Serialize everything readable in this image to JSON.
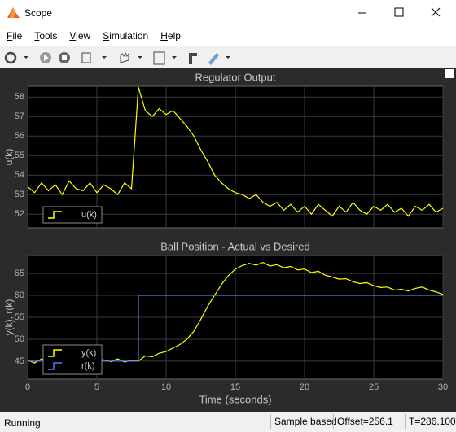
{
  "window": {
    "title": "Scope"
  },
  "menu": [
    "File",
    "Tools",
    "View",
    "Simulation",
    "Help"
  ],
  "chart_data": [
    {
      "type": "line",
      "title": "Regulator Output",
      "ylabel": "u(k)",
      "xlim": [
        0,
        30
      ],
      "ylim": [
        51.3,
        58.55
      ],
      "xticks": [
        0,
        5,
        10,
        15,
        20,
        25,
        30
      ],
      "yticks": [
        52,
        53,
        54,
        55,
        56,
        57,
        58
      ],
      "grid": true,
      "legend": "lower left",
      "series": [
        {
          "name": "u(k)",
          "color": "#ffff00",
          "x": [
            0,
            0.5,
            1,
            1.5,
            2,
            2.5,
            3,
            3.5,
            4,
            4.5,
            5,
            5.5,
            6,
            6.5,
            7,
            7.5,
            8,
            8.5,
            9,
            9.5,
            10,
            10.5,
            11,
            11.5,
            12,
            12.5,
            13,
            13.5,
            14,
            14.5,
            15,
            15.5,
            16,
            16.5,
            17,
            17.5,
            18,
            18.5,
            19,
            19.5,
            20,
            20.5,
            21,
            21.5,
            22,
            22.5,
            23,
            23.5,
            24,
            24.5,
            25,
            25.5,
            26,
            26.5,
            27,
            27.5,
            28,
            28.5,
            29,
            29.5,
            30
          ],
          "values": [
            53.4,
            53.1,
            53.6,
            53.2,
            53.5,
            53.0,
            53.7,
            53.3,
            53.2,
            53.6,
            53.1,
            53.5,
            53.3,
            53.0,
            53.6,
            53.3,
            58.5,
            57.3,
            57.0,
            57.4,
            57.1,
            57.3,
            56.9,
            56.5,
            56.0,
            55.3,
            54.7,
            54.0,
            53.6,
            53.3,
            53.1,
            53.0,
            52.8,
            53.0,
            52.6,
            52.4,
            52.6,
            52.2,
            52.5,
            52.1,
            52.4,
            52.0,
            52.5,
            52.2,
            51.9,
            52.4,
            52.1,
            52.6,
            52.2,
            52.0,
            52.4,
            52.2,
            52.5,
            52.1,
            52.3,
            51.9,
            52.4,
            52.2,
            52.5,
            52.1,
            52.3
          ]
        }
      ]
    },
    {
      "type": "line",
      "title": "Ball Position - Actual vs Desired",
      "ylabel": "y(k), r(k)",
      "xlabel": "Time (seconds)",
      "xlim": [
        0,
        30
      ],
      "ylim": [
        40.9,
        69.1
      ],
      "xticks": [
        0,
        5,
        10,
        15,
        20,
        25,
        30
      ],
      "yticks": [
        45,
        50,
        55,
        60,
        65
      ],
      "grid": true,
      "legend": "lower left",
      "series": [
        {
          "name": "y(k)",
          "color": "#ffff00",
          "x": [
            0,
            0.5,
            1,
            1.5,
            2,
            2.5,
            3,
            3.5,
            4,
            4.5,
            5,
            5.5,
            6,
            6.5,
            7,
            7.5,
            8,
            8.5,
            9,
            9.5,
            10,
            10.5,
            11,
            11.5,
            12,
            12.5,
            13,
            13.5,
            14,
            14.5,
            15,
            15.5,
            16,
            16.5,
            17,
            17.5,
            18,
            18.5,
            19,
            19.5,
            20,
            20.5,
            21,
            21.5,
            22,
            22.5,
            23,
            23.5,
            24,
            24.5,
            25,
            25.5,
            26,
            26.5,
            27,
            27.5,
            28,
            28.5,
            29,
            29.5,
            30
          ],
          "values": [
            45.2,
            44.6,
            45.5,
            44.8,
            45.3,
            44.5,
            45.6,
            44.9,
            45.1,
            45.4,
            44.7,
            45.3,
            44.9,
            45.5,
            44.8,
            45.2,
            45.0,
            46.2,
            46.0,
            46.8,
            47.2,
            48.0,
            48.8,
            50.0,
            51.8,
            54.5,
            57.5,
            60.0,
            62.5,
            64.5,
            66.0,
            66.8,
            67.3,
            66.9,
            67.5,
            66.7,
            67.0,
            66.3,
            66.6,
            65.8,
            66.0,
            65.2,
            65.5,
            64.6,
            64.2,
            63.7,
            63.8,
            63.1,
            62.7,
            62.9,
            62.2,
            61.8,
            61.9,
            61.2,
            61.4,
            61.0,
            61.6,
            61.9,
            61.2,
            60.8,
            60.2
          ]
        },
        {
          "name": "r(k)",
          "color": "#4f7fe0",
          "x": [
            0,
            8,
            8,
            30
          ],
          "values": [
            45,
            45,
            60,
            60
          ]
        }
      ]
    }
  ],
  "status": {
    "state": "Running",
    "mode": "Sample based",
    "offset": "Offset=256.1",
    "time": "T=286.100"
  }
}
